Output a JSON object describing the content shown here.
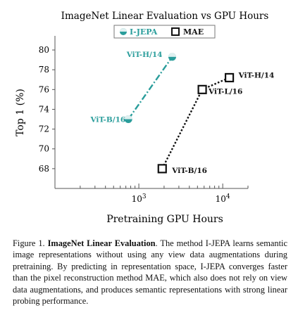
{
  "chart_data": {
    "type": "scatter",
    "title": "ImageNet Linear Evaluation vs GPU Hours",
    "xlabel": "Pretraining GPU Hours",
    "ylabel": "Top 1 (%)",
    "x_scale": "log",
    "xlim": [
      100,
      20000
    ],
    "ylim": [
      66,
      81
    ],
    "y_ticks": [
      68,
      70,
      72,
      74,
      76,
      78,
      80
    ],
    "x_tick_labels": [
      {
        "value": 1000,
        "base": "10",
        "exp": "3"
      },
      {
        "value": 10000,
        "base": "10",
        "exp": "4"
      }
    ],
    "legend_position": "top-center",
    "grid": false,
    "series": [
      {
        "name": "I-JEPA",
        "color": "#2a9d9b",
        "marker": "circle-half",
        "line": "dash-dot",
        "points": [
          {
            "x": 750,
            "y": 73.0,
            "label": "ViT-B/16"
          },
          {
            "x": 2500,
            "y": 79.3,
            "label": "ViT-H/14"
          }
        ]
      },
      {
        "name": "MAE",
        "color": "#111111",
        "marker": "square",
        "line": "dotted",
        "points": [
          {
            "x": 1900,
            "y": 68.0,
            "label": "ViT-B/16"
          },
          {
            "x": 5700,
            "y": 76.0,
            "label": "ViT-L/16"
          },
          {
            "x": 12000,
            "y": 77.2,
            "label": "ViT-H/14"
          }
        ]
      }
    ]
  },
  "caption": {
    "prefix": "Figure 1.",
    "bold": "ImageNet Linear Evaluation",
    "text": "The method I-JEPA learns semantic image representations without using any view data augmentations during pretraining. By predicting in representation space, I-JEPA converges faster than the pixel reconstruction method MAE, which also does not rely on view data augmentations, and produces semantic representations with strong linear probing performance."
  }
}
